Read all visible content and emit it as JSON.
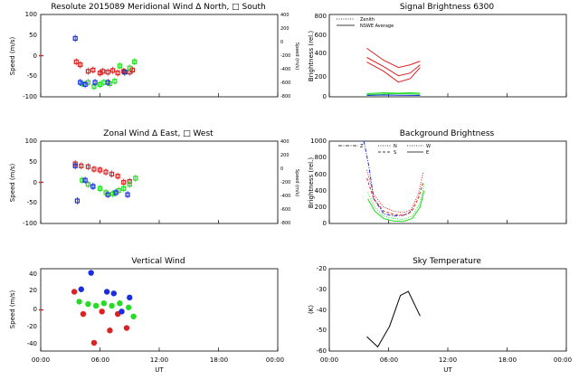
{
  "panels": {
    "meridional": {
      "title": "Resolute  2015089    Meridional Wind  Δ North, □ South",
      "ylabel": "Speed (m/s)",
      "ylabel_right": "Speed (m/s)",
      "yticks": [
        "100",
        "50",
        "0",
        "-50",
        "-100"
      ],
      "yticks_right": [
        "400",
        "200",
        "0",
        "-200",
        "-400",
        "-600",
        "-800"
      ]
    },
    "zonal": {
      "title": "Zonal Wind      Δ East, □ West",
      "ylabel": "Speed (m/s)",
      "ylabel_right": "Speed (m/s)",
      "yticks": [
        "100",
        "50",
        "0",
        "-50",
        "-100"
      ],
      "yticks_right": [
        "400",
        "200",
        "0",
        "-200",
        "-400",
        "-600",
        "-800"
      ]
    },
    "vertical": {
      "title": "Vertical Wind",
      "ylabel": "Speed (m/s)",
      "yticks": [
        "40",
        "20",
        "0",
        "-20",
        "-40"
      ]
    },
    "signal": {
      "title": "Signal Brightness        6300",
      "ylabel": "Brightness (rel.)",
      "yticks": [
        "800",
        "600",
        "400",
        "200",
        "0"
      ],
      "legend": [
        "Zenith",
        "NSWE Average"
      ]
    },
    "background": {
      "title": "Background Brightness",
      "ylabel": "Brightness (rel.)",
      "yticks": [
        "1000",
        "800",
        "600",
        "400",
        "200",
        "0"
      ],
      "legend": [
        "Z",
        "N",
        "S",
        "W",
        "E"
      ]
    },
    "sky": {
      "title": "Sky Temperature",
      "ylabel": "(K)",
      "yticks": [
        "-20",
        "-30",
        "-40",
        "-50",
        "-60"
      ]
    }
  },
  "xaxis": {
    "ticks": [
      "00:00",
      "06:00",
      "12:00",
      "18:00",
      "00:00"
    ],
    "label": "UT"
  },
  "colors": {
    "red": "#dd2222",
    "green": "#22dd22",
    "blue": "#1a2ee0",
    "black": "#000000"
  },
  "chart_data": [
    {
      "type": "scatter",
      "title": "Resolute  2015089    Meridional Wind  Δ North, □ South",
      "ylabel": "Speed (m/s)",
      "xlim": [
        0,
        24
      ],
      "ylim": [
        -100,
        100
      ],
      "series": [
        {
          "color": "red",
          "x": [
            3.6,
            4.0,
            4.8,
            5.3,
            6.0,
            6.3,
            6.8,
            7.3,
            7.8,
            8.4,
            9.0,
            9.3
          ],
          "y": [
            -15,
            -22,
            -38,
            -35,
            -42,
            -38,
            -40,
            -36,
            -42,
            -38,
            -40,
            -35
          ]
        },
        {
          "color": "green",
          "x": [
            4.2,
            4.8,
            5.4,
            6.0,
            6.4,
            7.0,
            7.5,
            8.0,
            8.5,
            9.0,
            9.5
          ],
          "y": [
            -68,
            -65,
            -75,
            -70,
            -65,
            -68,
            -62,
            -25,
            -40,
            -30,
            -15
          ]
        },
        {
          "color": "blue",
          "x": [
            3.5,
            4.0,
            4.5,
            5.5,
            6.8,
            8.5
          ],
          "y": [
            42,
            -65,
            -70,
            -65,
            -65,
            -40
          ]
        }
      ]
    },
    {
      "type": "scatter",
      "title": "Zonal Wind      Δ East, □ West",
      "ylabel": "Speed (m/s)",
      "xlim": [
        0,
        24
      ],
      "ylim": [
        -100,
        100
      ],
      "series": [
        {
          "color": "red",
          "x": [
            3.5,
            4.1,
            4.8,
            5.4,
            6.0,
            6.6,
            7.2,
            7.8,
            8.4,
            9.0
          ],
          "y": [
            45,
            40,
            38,
            32,
            30,
            25,
            20,
            15,
            0,
            2
          ]
        },
        {
          "color": "green",
          "x": [
            4.2,
            4.8,
            5.3,
            6.0,
            6.6,
            7.3,
            7.9,
            8.4,
            9.0,
            9.6
          ],
          "y": [
            5,
            -5,
            -10,
            -15,
            -25,
            -28,
            -20,
            -15,
            -5,
            10
          ]
        },
        {
          "color": "blue",
          "x": [
            3.5,
            3.7,
            4.5,
            5.3,
            6.8,
            7.6,
            8.8
          ],
          "y": [
            40,
            -45,
            5,
            -10,
            -30,
            -25,
            -30
          ]
        }
      ]
    },
    {
      "type": "scatter",
      "title": "Vertical Wind",
      "ylabel": "Speed (m/s)",
      "xlim": [
        0,
        24
      ],
      "ylim": [
        -50,
        50
      ],
      "series": [
        {
          "color": "red",
          "x": [
            3.4,
            4.3,
            5.4,
            6.2,
            7.0,
            7.8,
            8.7
          ],
          "y": [
            22,
            -5,
            -40,
            -2,
            -25,
            -5,
            -22
          ]
        },
        {
          "color": "green",
          "x": [
            3.9,
            4.8,
            5.6,
            6.4,
            7.2,
            8.0,
            8.9,
            9.4
          ],
          "y": [
            10,
            7,
            5,
            8,
            5,
            8,
            3,
            -8
          ]
        },
        {
          "color": "blue",
          "x": [
            4.1,
            5.1,
            6.7,
            7.4,
            8.2,
            9.0
          ],
          "y": [
            25,
            45,
            22,
            20,
            -2,
            15
          ]
        }
      ]
    },
    {
      "type": "line",
      "title": "Signal Brightness        6300",
      "ylabel": "Brightness (rel.)",
      "xlim": [
        0,
        24
      ],
      "ylim": [
        0,
        900
      ],
      "series": [
        {
          "name": "NSWE Average",
          "color": "red",
          "x": [
            3.8,
            5.5,
            7.0,
            8.2,
            9.2
          ],
          "y": [
            530,
            400,
            320,
            350,
            390
          ]
        },
        {
          "name": "NSWE Average",
          "color": "red",
          "x": [
            3.8,
            5.5,
            7.0,
            8.2,
            9.2
          ],
          "y": [
            430,
            330,
            230,
            260,
            350
          ]
        },
        {
          "name": "NSWE Average",
          "color": "red",
          "x": [
            3.8,
            5.5,
            7.0,
            8.2,
            9.2
          ],
          "y": [
            380,
            280,
            160,
            200,
            320
          ]
        },
        {
          "name": "NSWE Average",
          "color": "green",
          "x": [
            3.8,
            5.5,
            7.0,
            8.2,
            9.2
          ],
          "y": [
            35,
            45,
            40,
            45,
            40
          ]
        },
        {
          "name": "NSWE Average",
          "color": "green",
          "x": [
            3.8,
            5.5,
            7.0,
            8.2,
            9.2
          ],
          "y": [
            25,
            30,
            35,
            32,
            28
          ]
        },
        {
          "name": "NSWE Average",
          "color": "blue",
          "x": [
            3.8,
            5.5,
            7.0,
            8.2,
            9.2
          ],
          "y": [
            15,
            20,
            18,
            16,
            15
          ]
        }
      ]
    },
    {
      "type": "line",
      "title": "Background Brightness",
      "ylabel": "Brightness (rel.)",
      "xlim": [
        0,
        24
      ],
      "ylim": [
        0,
        1000
      ],
      "series": [
        {
          "name": "Z",
          "color": "blue",
          "x": [
            3.5,
            4.0,
            4.5,
            5.5,
            6.5,
            7.5,
            8.0,
            8.5
          ],
          "y": [
            1000,
            700,
            300,
            120,
            90,
            100,
            120,
            180
          ]
        },
        {
          "name": "N",
          "color": "red",
          "x": [
            3.8,
            4.5,
            5.5,
            6.5,
            7.5,
            8.3,
            9.0,
            9.5
          ],
          "y": [
            650,
            350,
            200,
            150,
            130,
            170,
            350,
            620
          ]
        },
        {
          "name": "S",
          "color": "red",
          "x": [
            3.8,
            4.5,
            5.5,
            6.5,
            7.5,
            8.3,
            9.0,
            9.5
          ],
          "y": [
            550,
            300,
            150,
            110,
            100,
            140,
            300,
            500
          ]
        },
        {
          "name": "W",
          "color": "green",
          "x": [
            3.9,
            4.6,
            5.5,
            6.5,
            7.5,
            8.4,
            9.2,
            9.6
          ],
          "y": [
            380,
            200,
            90,
            60,
            50,
            90,
            250,
            480
          ]
        },
        {
          "name": "E",
          "color": "green",
          "x": [
            3.9,
            4.6,
            5.5,
            6.5,
            7.5,
            8.4,
            9.2,
            9.6
          ],
          "y": [
            300,
            150,
            60,
            30,
            25,
            60,
            200,
            400
          ]
        }
      ]
    },
    {
      "type": "line",
      "title": "Sky Temperature",
      "ylabel": "(K)",
      "xlim": [
        0,
        24
      ],
      "ylim": [
        -60,
        -20
      ],
      "series": [
        {
          "color": "black",
          "x": [
            3.8,
            4.9,
            6.1,
            7.2,
            8.0,
            9.2
          ],
          "y": [
            -53,
            -58,
            -48,
            -33,
            -31,
            -43
          ]
        }
      ]
    }
  ]
}
